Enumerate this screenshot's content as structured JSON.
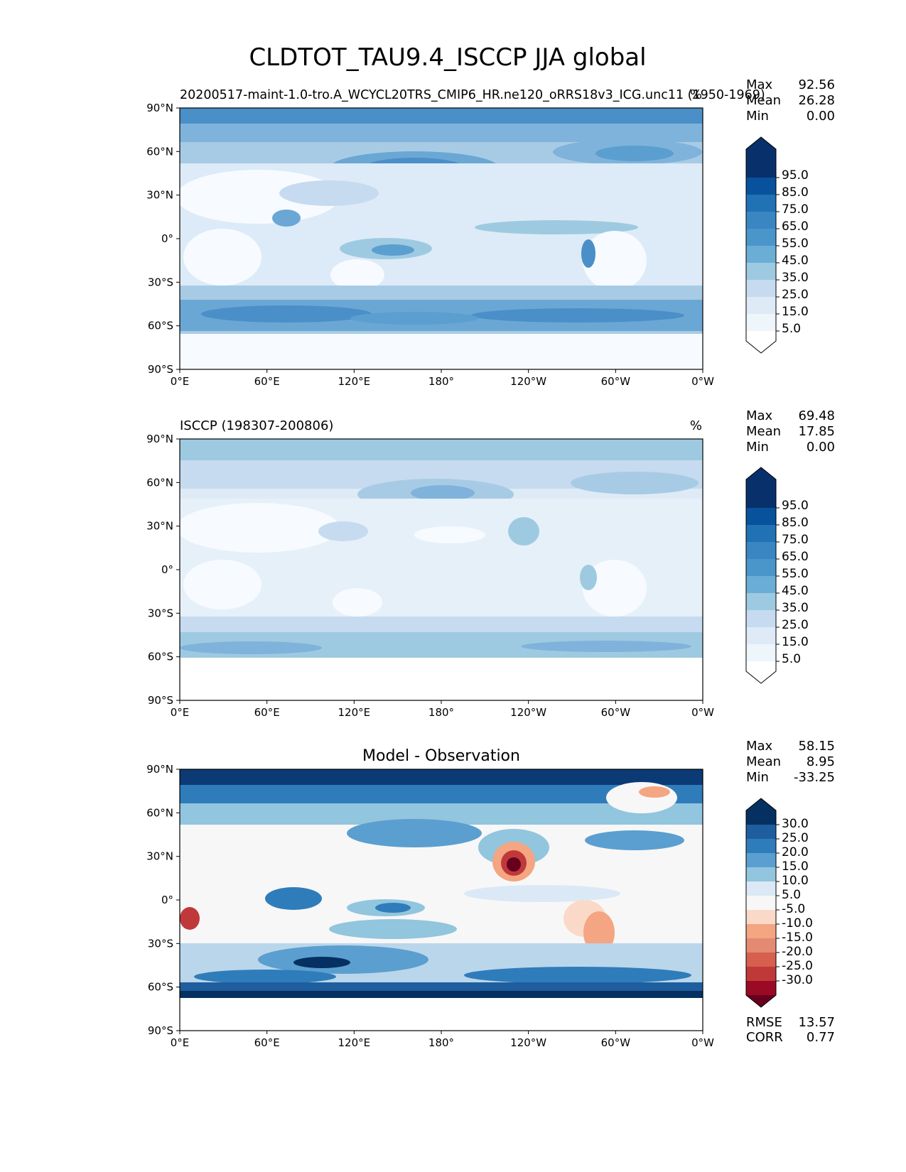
{
  "figure": {
    "title": "CLDTOT_TAU9.4_ISCCP JJA global"
  },
  "lat_ticks": [
    "90°N",
    "60°N",
    "30°N",
    "0°",
    "30°S",
    "60°S",
    "90°S"
  ],
  "lon_ticks": [
    "0°E",
    "60°E",
    "120°E",
    "180°",
    "120°W",
    "60°W",
    "0°W"
  ],
  "panels": [
    {
      "left_title": "20200517-maint-1.0-tro.A_WCYCL20TRS_CMIP6_HR.ne120_oRRS18v3_ICG.unc11 (1950-1969)",
      "center_title": "",
      "units": "%",
      "stats": {
        "max_label": "Max",
        "max": "92.56",
        "mean_label": "Mean",
        "mean": "26.28",
        "min_label": "Min",
        "min": "0.00"
      },
      "colorbar": {
        "labels": [
          "95.0",
          "85.0",
          "75.0",
          "65.0",
          "55.0",
          "45.0",
          "35.0",
          "25.0",
          "15.0",
          "5.0"
        ]
      }
    },
    {
      "left_title": "ISCCP (198307-200806)",
      "center_title": "",
      "units": "%",
      "stats": {
        "max_label": "Max",
        "max": "69.48",
        "mean_label": "Mean",
        "mean": "17.85",
        "min_label": "Min",
        "min": "0.00"
      },
      "colorbar": {
        "labels": [
          "95.0",
          "85.0",
          "75.0",
          "65.0",
          "55.0",
          "45.0",
          "35.0",
          "25.0",
          "15.0",
          "5.0"
        ]
      }
    },
    {
      "left_title": "",
      "center_title": "Model - Observation",
      "units": "",
      "stats": {
        "max_label": "Max",
        "max": "58.15",
        "mean_label": "Mean",
        "mean": "8.95",
        "min_label": "Min",
        "min": "-33.25"
      },
      "colorbar": {
        "labels": [
          "30.0",
          "25.0",
          "20.0",
          "15.0",
          "10.0",
          "5.0",
          "-5.0",
          "-10.0",
          "-15.0",
          "-20.0",
          "-25.0",
          "-30.0"
        ]
      },
      "metrics": {
        "rmse_label": "RMSE",
        "rmse": "13.57",
        "corr_label": "CORR",
        "corr": "0.77"
      }
    }
  ],
  "colors": {
    "blues": [
      "#f7fbff",
      "#deebf7",
      "#c6dbef",
      "#9ecae1",
      "#6baed6",
      "#4292c6",
      "#2171b5",
      "#08519c",
      "#08306b"
    ],
    "diff": [
      "#67001f",
      "#9b0a24",
      "#c0393a",
      "#d6604d",
      "#e48a73",
      "#f4a582",
      "#fbd9c8",
      "#f7f7f7",
      "#dbe9f6",
      "#bad6eb",
      "#92c5de",
      "#5a9fcf",
      "#2f7cba",
      "#1f5e9e",
      "#053061"
    ]
  },
  "chart_data": [
    {
      "type": "heatmap",
      "title": "20200517-maint-1.0-tro.A_WCYCL20TRS_CMIP6_HR.ne120_oRRS18v3_ICG.unc11 (1950-1969)",
      "units": "%",
      "xlim": [
        0,
        360
      ],
      "ylim": [
        -90,
        90
      ],
      "color_levels": [
        5,
        15,
        25,
        35,
        45,
        55,
        65,
        75,
        85,
        95
      ],
      "stats": {
        "max": 92.56,
        "mean": 26.28,
        "min": 0.0
      }
    },
    {
      "type": "heatmap",
      "title": "ISCCP (198307-200806)",
      "units": "%",
      "xlim": [
        0,
        360
      ],
      "ylim": [
        -90,
        90
      ],
      "color_levels": [
        5,
        15,
        25,
        35,
        45,
        55,
        65,
        75,
        85,
        95
      ],
      "stats": {
        "max": 69.48,
        "mean": 17.85,
        "min": 0.0
      }
    },
    {
      "type": "heatmap",
      "title": "Model - Observation",
      "xlim": [
        0,
        360
      ],
      "ylim": [
        -90,
        90
      ],
      "color_levels": [
        -30,
        -25,
        -20,
        -15,
        -10,
        -5,
        5,
        10,
        15,
        20,
        25,
        30
      ],
      "stats": {
        "max": 58.15,
        "mean": 8.95,
        "min": -33.25
      },
      "rmse": 13.57,
      "corr": 0.77
    }
  ]
}
